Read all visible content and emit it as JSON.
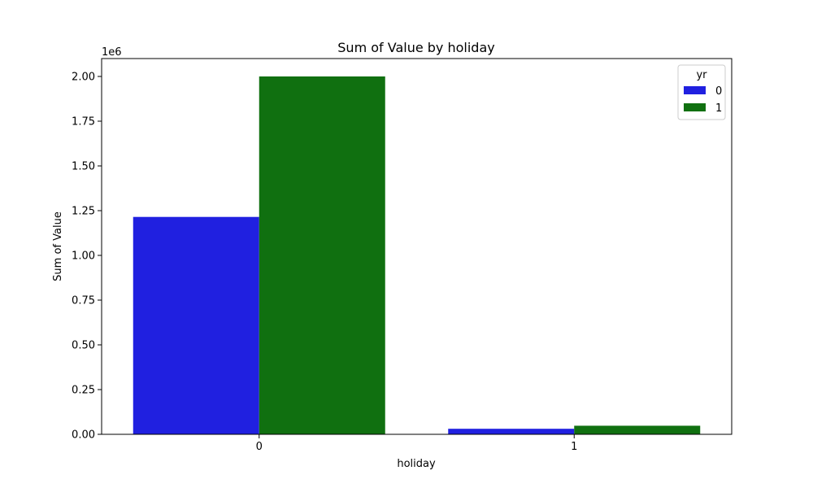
{
  "chart_data": {
    "type": "bar",
    "title": "Sum of Value by holiday",
    "xlabel": "holiday",
    "ylabel": "Sum of Value",
    "y_multiplier_label": "1e6",
    "categories": [
      "0",
      "1"
    ],
    "series": [
      {
        "name": "0",
        "color": "#2020e0",
        "values": [
          1215000,
          31000
        ]
      },
      {
        "name": "1",
        "color": "#107010",
        "values": [
          2000000,
          48000
        ]
      }
    ],
    "ylim": [
      0,
      2100000
    ],
    "y_ticks": [
      0,
      250000,
      500000,
      750000,
      1000000,
      1250000,
      1500000,
      1750000,
      2000000
    ],
    "y_tick_labels": [
      "0.00",
      "0.25",
      "0.50",
      "0.75",
      "1.00",
      "1.25",
      "1.50",
      "1.75",
      "2.00"
    ],
    "legend": {
      "title": "yr",
      "placement": "top-right"
    },
    "grid": false
  }
}
